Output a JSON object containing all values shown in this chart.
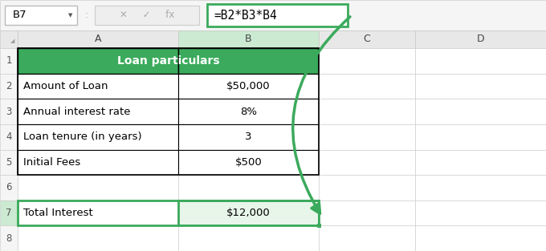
{
  "formula_bar_cell": "B7",
  "formula_bar_formula": "=B2*B3*B4",
  "header_text": "Loan particulars",
  "header_bg": "#3BAA5C",
  "header_text_color": "#FFFFFF",
  "rows": [
    {
      "label": "Amount of Loan",
      "value": "$50,000"
    },
    {
      "label": "Annual interest rate",
      "value": "8%"
    },
    {
      "label": "Loan tenure (in years)",
      "value": "3"
    },
    {
      "label": "Initial Fees",
      "value": "$500"
    },
    {
      "label": "",
      "value": ""
    },
    {
      "label": "Total Interest",
      "value": "$12,000"
    }
  ],
  "selected_cell_bg": "#E8F5E9",
  "selected_cell_border": "#3BAA5C",
  "table_border": "#000000",
  "grid_color": "#C8C8C8",
  "cell_bg": "#FFFFFF",
  "arrow_color": "#3BAA5C",
  "formula_box_border": "#3BAA5C",
  "toolbar_bg": "#F5F5F5",
  "col_header_bg": "#E8E8E8",
  "col_header_selected_bg": "#CBEAD1",
  "row_num_bg": "#F5F5F5",
  "font_size": 9.5,
  "header_font_size": 10
}
